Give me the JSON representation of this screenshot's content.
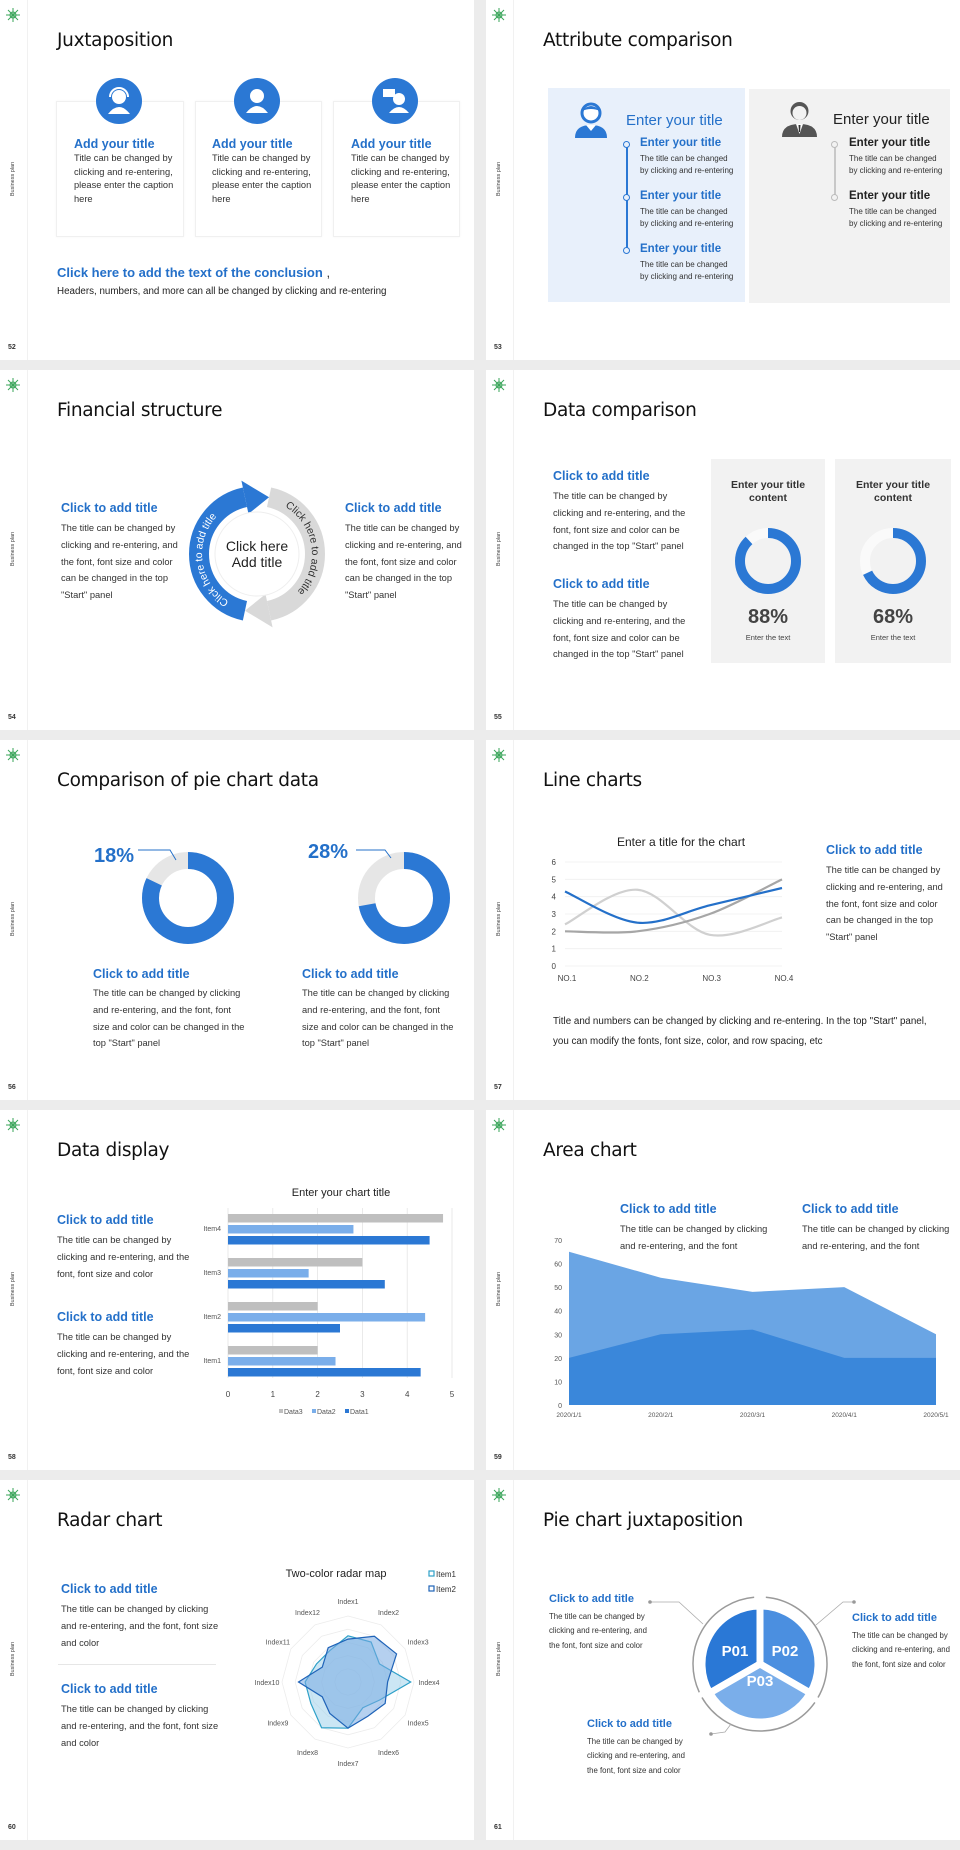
{
  "sidebar_label": "Business plan",
  "colors": {
    "accent": "#2b78d4",
    "text_blue": "#2470c9",
    "light_blue": "#7aaeea",
    "gray": "#bfbfbf",
    "panel_blue": "#e8f0fb",
    "panel_gray": "#f2f2f2"
  },
  "slides": [
    {
      "page": "52",
      "title": "Juxtaposition",
      "cards": [
        {
          "icon": "customer-service-agent-icon",
          "title": "Add your title",
          "body": "Title can be changed by clicking and re-entering, please enter the caption here"
        },
        {
          "icon": "staff-person-icon",
          "title": "Add your title",
          "body": "Title can be changed by clicking and re-entering, please enter the caption here"
        },
        {
          "icon": "person-chat-icon",
          "title": "Add your title",
          "body": "Title can be changed by clicking and re-entering, please enter the caption here"
        }
      ],
      "conclusion_title": "Click here to add the text of the conclusion",
      "conclusion_punct": ",",
      "conclusion_body": "Headers, numbers, and more can all be changed by clicking and re-entering"
    },
    {
      "page": "53",
      "title": "Attribute comparison",
      "left": {
        "icon": "female-person-icon",
        "heading": "Enter your title",
        "items": [
          {
            "title": "Enter your title",
            "body": "The title can be changed by clicking and re-entering"
          },
          {
            "title": "Enter your title",
            "body": "The title can be changed by clicking and re-entering"
          },
          {
            "title": "Enter your title",
            "body": "The title can be changed by clicking and re-entering"
          }
        ]
      },
      "right": {
        "icon": "businessman-icon",
        "heading": "Enter your title",
        "items": [
          {
            "title": "Enter your title",
            "body": "The title can be changed by clicking and re-entering"
          },
          {
            "title": "Enter your title",
            "body": "The title can be changed by clicking and re-entering"
          }
        ]
      }
    },
    {
      "page": "54",
      "title": "Financial structure",
      "left": {
        "title": "Click to add title",
        "body": "The title can be changed by clicking and re-entering, and the font, font size and color can be changed in the top \"Start\" panel"
      },
      "right": {
        "title": "Click to add title",
        "body": "The title can be changed by clicking and re-entering, and the font, font size and color can be changed in the top \"Start\" panel"
      },
      "ring_left": "Click here to add title",
      "ring_right": "Click here to add title",
      "center_line1": "Click here",
      "center_line2": "Add title"
    },
    {
      "page": "55",
      "title": "Data comparison",
      "blocks": [
        {
          "title": "Click to add title",
          "body": "The title can be changed by clicking and re-entering, and the font, font size and color can be changed in the top \"Start\" panel"
        },
        {
          "title": "Click to add title",
          "body": "The title can be changed by clicking and re-entering, and the font, font size and color can be changed in the top \"Start\" panel"
        }
      ],
      "cards": [
        {
          "title": "Enter your title content",
          "value": "88%",
          "caption": "Enter the text"
        },
        {
          "title": "Enter your title content",
          "value": "68%",
          "caption": "Enter the text"
        }
      ]
    },
    {
      "page": "56",
      "title": "Comparison of pie chart data",
      "items": [
        {
          "label": "18%",
          "title": "Click to add title",
          "body": "The title can be changed by clicking and re-entering, and the font, font size and color can be changed in the top \"Start\" panel"
        },
        {
          "label": "28%",
          "title": "Click to add title",
          "body": "The title can be changed by clicking and re-entering, and the font, font size and color can be changed in the top \"Start\" panel"
        }
      ]
    },
    {
      "page": "57",
      "title": "Line charts",
      "side": {
        "title": "Click to add title",
        "body": "The title can be changed by clicking and re-entering, and the font, font size and color can be changed in the top \"Start\" panel"
      },
      "footer": "Title and numbers can be changed by clicking and re-entering. In the top \"Start\" panel, you can modify the fonts, font size, color, and row spacing, etc"
    },
    {
      "page": "58",
      "title": "Data display",
      "blocks": [
        {
          "title": "Click to add title",
          "body": "The title can be changed by clicking and re-entering, and the font, font size and color"
        },
        {
          "title": "Click to add title",
          "body": "The title can be changed by clicking and re-entering, and the font, font size and color"
        }
      ]
    },
    {
      "page": "59",
      "title": "Area chart",
      "blocks": [
        {
          "title": "Click to add title",
          "body": "The title can be changed by clicking and re-entering, and the font"
        },
        {
          "title": "Click to add title",
          "body": "The title can be changed by clicking and re-entering, and the font"
        }
      ]
    },
    {
      "page": "60",
      "title": "Radar chart",
      "blocks": [
        {
          "title": "Click to add title",
          "body": "The title can be changed by clicking and re-entering, and the font, font size and color"
        },
        {
          "title": "Click to add title",
          "body": "The title can be changed by clicking and re-entering, and the font, font size and color"
        }
      ]
    },
    {
      "page": "61",
      "title": "Pie chart juxtaposition",
      "blocks": [
        {
          "title": "Click to add title",
          "body": "The title can be changed by clicking and re-entering, and the font, font size and color"
        },
        {
          "title": "Click to add title",
          "body": "The title can be changed by clicking and re-entering, and the font, font size and color"
        },
        {
          "title": "Click to add title",
          "body": "The title can be changed by clicking and re-entering, and the font, font size and color"
        }
      ],
      "segments": [
        "P01",
        "P02",
        "P03"
      ]
    }
  ],
  "chart_data": [
    {
      "id": "donut-88",
      "type": "pie",
      "values": [
        88,
        12
      ],
      "label": "88%"
    },
    {
      "id": "donut-68",
      "type": "pie",
      "values": [
        68,
        32
      ],
      "label": "68%"
    },
    {
      "id": "donut-18",
      "type": "pie",
      "values": [
        82,
        18
      ],
      "label": "18%"
    },
    {
      "id": "donut-28",
      "type": "pie",
      "values": [
        72,
        28
      ],
      "label": "28%"
    },
    {
      "id": "line",
      "type": "line",
      "title": "Enter a title for the chart",
      "categories": [
        "NO.1",
        "NO.2",
        "NO.3",
        "NO.4"
      ],
      "yticks": [
        "0",
        "1",
        "2",
        "3",
        "4",
        "5",
        "6"
      ],
      "ylim": [
        0,
        6
      ],
      "grid": true,
      "series": [
        {
          "values": [
            4.3,
            2.5,
            3.5,
            4.5
          ],
          "color": "#2470c9"
        },
        {
          "values": [
            2.4,
            4.4,
            1.8,
            2.8
          ],
          "color": "#d0d0d0"
        },
        {
          "values": [
            2.0,
            2.0,
            3.0,
            5.0
          ],
          "color": "#a6a6a6"
        }
      ]
    },
    {
      "id": "bar",
      "type": "bar",
      "orientation": "horizontal",
      "title": "Enter your chart title",
      "categories": [
        "Item1",
        "Item2",
        "Item3",
        "Item4"
      ],
      "xticks": [
        "0",
        "1",
        "2",
        "3",
        "4",
        "5"
      ],
      "xlim": [
        0,
        5
      ],
      "grid": true,
      "legend": "bottom",
      "series": [
        {
          "name": "Data3",
          "values": [
            2,
            2,
            3,
            4.8
          ],
          "color": "#bfbfbf"
        },
        {
          "name": "Data2",
          "values": [
            2.4,
            4.4,
            1.8,
            2.8
          ],
          "color": "#7aaeea"
        },
        {
          "name": "Data1",
          "values": [
            4.3,
            2.5,
            3.5,
            4.5
          ],
          "color": "#2b78d4"
        }
      ]
    },
    {
      "id": "area",
      "type": "area",
      "categories": [
        "2020/1/1",
        "2020/2/1",
        "2020/3/1",
        "2020/4/1",
        "2020/5/1"
      ],
      "yticks": [
        "0",
        "10",
        "20",
        "30",
        "40",
        "50",
        "60",
        "70"
      ],
      "ylim": [
        0,
        70
      ],
      "series": [
        {
          "values": [
            65,
            54,
            48,
            50,
            30
          ],
          "color": "#6aa5e4"
        },
        {
          "values": [
            20,
            30,
            32,
            20,
            20
          ],
          "color": "#3a87da"
        }
      ]
    },
    {
      "id": "radar",
      "type": "radar",
      "title": "Two-color radar map",
      "legend": "top-right",
      "rmax": 10,
      "categories": [
        "Index1",
        "Index2",
        "Index3",
        "Index4",
        "Index5",
        "Index6",
        "Index7",
        "Index8",
        "Index9",
        "Index10",
        "Index11",
        "Index12"
      ],
      "series": [
        {
          "name": "Item1",
          "values": [
            7,
            7,
            5.5,
            9.5,
            5.5,
            4.5,
            7,
            8,
            6.5,
            6.5,
            5.5,
            5.5
          ],
          "color": "#2ea0c8"
        },
        {
          "name": "Item2",
          "values": [
            6.5,
            8,
            8.5,
            6,
            6.5,
            6,
            7,
            5.5,
            4.5,
            7.5,
            4.5,
            6
          ],
          "color": "#1f63b8"
        }
      ]
    }
  ]
}
